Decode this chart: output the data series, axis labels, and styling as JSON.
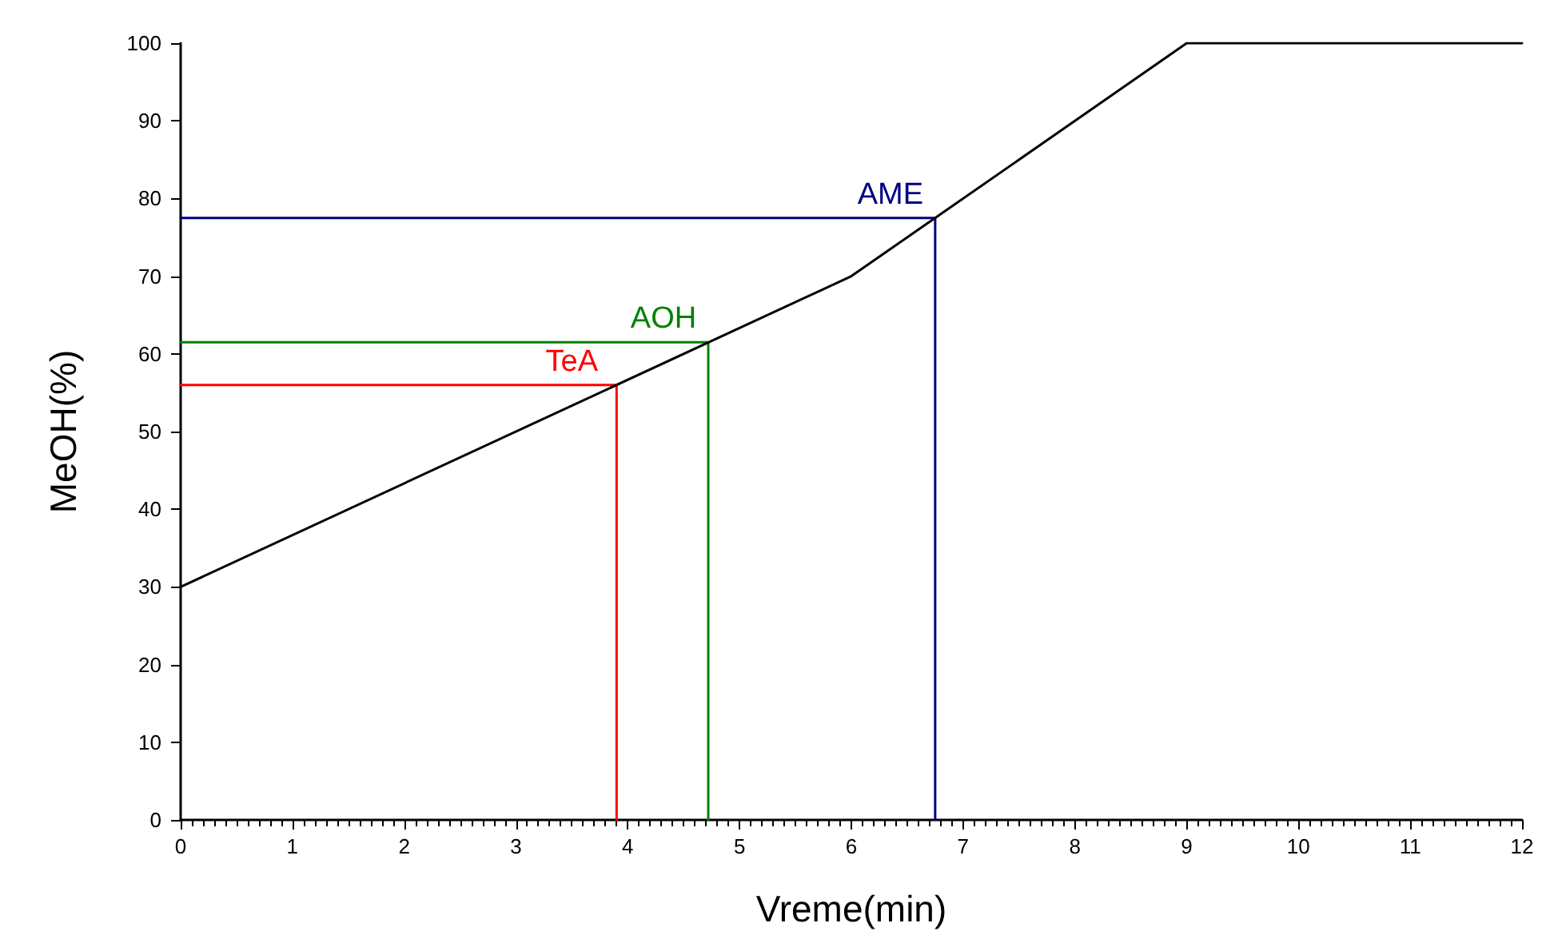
{
  "chart_data": {
    "type": "line",
    "xlabel": "Vreme(min)",
    "ylabel": "MeOH(%)",
    "xlim": [
      0,
      12
    ],
    "xticks": [
      0,
      1,
      2,
      3,
      4,
      5,
      6,
      7,
      8,
      9,
      10,
      11,
      12
    ],
    "ylim": [
      0,
      100
    ],
    "yticks": [
      0,
      10,
      20,
      30,
      40,
      50,
      60,
      70,
      80,
      90,
      100
    ],
    "grid": false,
    "legend": false,
    "marker": "none",
    "line_style": "solid",
    "series": [
      {
        "color": "#000000",
        "x": [
          0,
          6,
          9,
          12
        ],
        "values": [
          30,
          70,
          100,
          100
        ]
      },
      {
        "name": "TeA",
        "color": "#ff0000",
        "x": [
          0,
          3.9,
          3.9
        ],
        "values": [
          56,
          56,
          0
        ]
      },
      {
        "name": "AOH",
        "color": "#008000",
        "x": [
          0,
          4.72,
          4.72
        ],
        "values": [
          61.5,
          61.5,
          0
        ]
      },
      {
        "name": "AME",
        "color": "#000080",
        "x": [
          0,
          6.75,
          6.75
        ],
        "values": [
          77.5,
          77.5,
          0
        ]
      }
    ]
  }
}
